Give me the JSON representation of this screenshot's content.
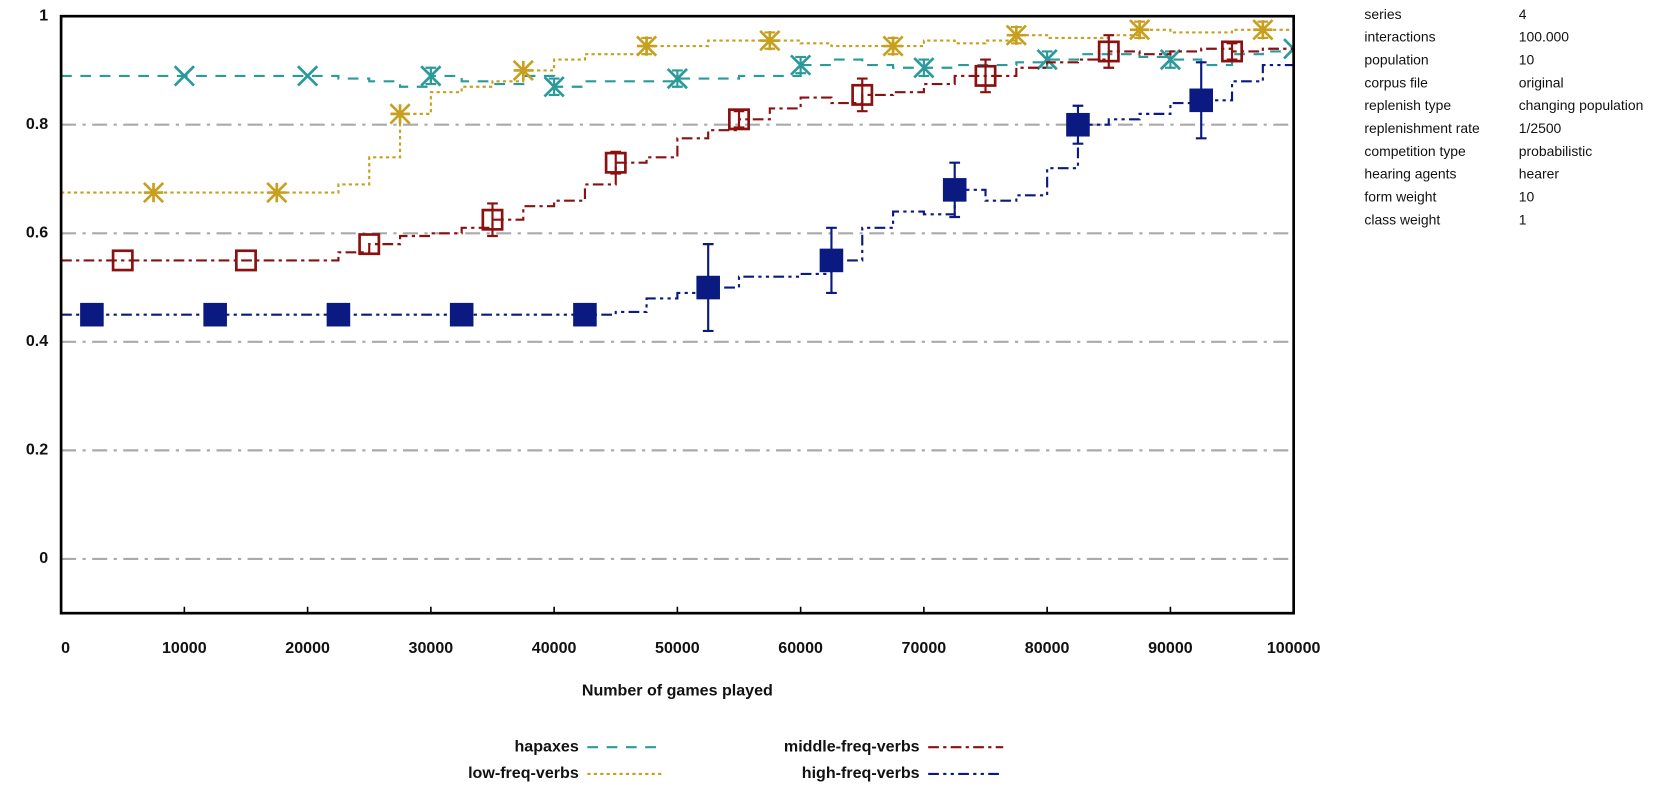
{
  "chart_data": {
    "type": "line",
    "xlabel": "Number of games played",
    "xlim": [
      0,
      100000
    ],
    "xticks": [
      0,
      10000,
      20000,
      30000,
      40000,
      50000,
      60000,
      70000,
      80000,
      90000,
      100000
    ],
    "ylim": [
      -0.1,
      1
    ],
    "yticks": [
      0,
      0.2,
      0.4,
      0.6,
      0.8,
      1
    ],
    "grid": true,
    "x": [
      0,
      2500,
      5000,
      7500,
      10000,
      12500,
      15000,
      17500,
      20000,
      22500,
      25000,
      27500,
      30000,
      32500,
      35000,
      37500,
      40000,
      42500,
      45000,
      47500,
      50000,
      52500,
      55000,
      57500,
      60000,
      62500,
      65000,
      67500,
      70000,
      72500,
      75000,
      77500,
      80000,
      82500,
      85000,
      87500,
      90000,
      92500,
      95000,
      97500,
      100000
    ],
    "series": [
      {
        "name": "hapaxes",
        "color": "#2a9a9a",
        "values": [
          0.89,
          0.89,
          0.89,
          0.89,
          0.89,
          0.89,
          0.89,
          0.89,
          0.89,
          0.885,
          0.88,
          0.87,
          0.89,
          0.88,
          0.875,
          0.89,
          0.87,
          0.88,
          0.88,
          0.88,
          0.885,
          0.885,
          0.89,
          0.89,
          0.91,
          0.92,
          0.91,
          0.905,
          0.905,
          0.91,
          0.91,
          0.915,
          0.92,
          0.93,
          0.93,
          0.925,
          0.92,
          0.91,
          0.93,
          0.935,
          0.94
        ],
        "errors": [
          null,
          null,
          null,
          null,
          null,
          null,
          null,
          null,
          null,
          null,
          null,
          null,
          0.015,
          null,
          null,
          null,
          0.015,
          null,
          null,
          null,
          0.015,
          null,
          null,
          null,
          0.015,
          null,
          null,
          null,
          0.015,
          null,
          null,
          null,
          0.015,
          null,
          null,
          null,
          0.015,
          null,
          null,
          null,
          null
        ]
      },
      {
        "name": "low-freq-verbs",
        "color": "#c8a020",
        "values": [
          0.675,
          0.675,
          0.675,
          0.675,
          0.675,
          0.675,
          0.675,
          0.675,
          0.675,
          0.69,
          0.74,
          0.82,
          0.86,
          0.87,
          0.88,
          0.9,
          0.92,
          0.93,
          0.93,
          0.945,
          0.945,
          0.955,
          0.955,
          0.955,
          0.95,
          0.945,
          0.945,
          0.945,
          0.955,
          0.95,
          0.955,
          0.965,
          0.96,
          0.96,
          0.965,
          0.975,
          0.97,
          0.97,
          0.975,
          0.975,
          0.97
        ],
        "errors": [
          null,
          null,
          null,
          null,
          null,
          null,
          null,
          null,
          null,
          null,
          null,
          null,
          null,
          null,
          null,
          null,
          null,
          null,
          null,
          0.015,
          null,
          null,
          null,
          0.015,
          null,
          null,
          null,
          0.015,
          null,
          null,
          null,
          0.015,
          null,
          null,
          null,
          0.015,
          null,
          null,
          null,
          0.015,
          null
        ]
      },
      {
        "name": "middle-freq-verbs",
        "color": "#8b1010",
        "values": [
          0.55,
          0.55,
          0.55,
          0.55,
          0.55,
          0.55,
          0.55,
          0.55,
          0.55,
          0.565,
          0.58,
          0.595,
          0.6,
          0.61,
          0.625,
          0.65,
          0.66,
          0.69,
          0.73,
          0.74,
          0.775,
          0.79,
          0.81,
          0.83,
          0.85,
          0.84,
          0.855,
          0.86,
          0.875,
          0.89,
          0.89,
          0.905,
          0.915,
          0.92,
          0.935,
          0.93,
          0.935,
          0.94,
          0.935,
          0.94,
          0.94
        ],
        "errors": [
          null,
          null,
          null,
          null,
          null,
          null,
          null,
          null,
          null,
          null,
          null,
          null,
          null,
          null,
          0.03,
          null,
          null,
          null,
          0.02,
          null,
          null,
          null,
          0.015,
          null,
          null,
          null,
          0.03,
          null,
          null,
          null,
          0.03,
          null,
          null,
          null,
          0.03,
          null,
          null,
          null,
          0.015,
          null,
          null
        ]
      },
      {
        "name": "high-freq-verbs",
        "color": "#0a1a80",
        "values": [
          0.45,
          0.45,
          0.45,
          0.45,
          0.45,
          0.45,
          0.45,
          0.45,
          0.45,
          0.45,
          0.45,
          0.45,
          0.45,
          0.45,
          0.45,
          0.45,
          0.45,
          0.45,
          0.455,
          0.48,
          0.49,
          0.5,
          0.52,
          0.52,
          0.525,
          0.55,
          0.61,
          0.64,
          0.635,
          0.68,
          0.66,
          0.67,
          0.72,
          0.8,
          0.81,
          0.82,
          0.84,
          0.845,
          0.88,
          0.91,
          0.94
        ],
        "errors": [
          null,
          null,
          null,
          null,
          null,
          null,
          null,
          null,
          null,
          null,
          null,
          null,
          null,
          null,
          null,
          null,
          null,
          null,
          null,
          null,
          null,
          0.08,
          null,
          null,
          null,
          0.06,
          null,
          null,
          null,
          0.05,
          null,
          null,
          null,
          0.035,
          null,
          null,
          null,
          0.07,
          null,
          null,
          null
        ]
      }
    ]
  },
  "parameters": [
    {
      "label": "series",
      "value": "4"
    },
    {
      "label": "interactions",
      "value": "100.000"
    },
    {
      "label": "population",
      "value": "10"
    },
    {
      "label": "corpus file",
      "value": "original"
    },
    {
      "label": "replenish type",
      "value": "changing population"
    },
    {
      "label": "replenishment rate",
      "value": "1/2500"
    },
    {
      "label": "competition type",
      "value": "probabilistic"
    },
    {
      "label": "hearing agents",
      "value": "hearer"
    },
    {
      "label": "form weight",
      "value": "10"
    },
    {
      "label": "class weight",
      "value": "1"
    }
  ]
}
